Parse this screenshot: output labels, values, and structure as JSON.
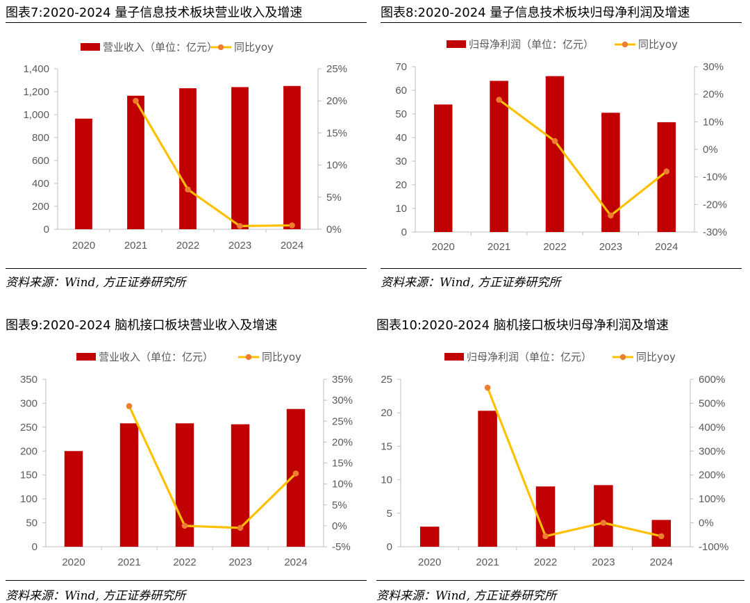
{
  "colors": {
    "bar": "#C00000",
    "line": "#FFC000",
    "marker": "#ED7D31",
    "axis": "#BFBFBF",
    "tick": "#595959"
  },
  "charts": [
    {
      "title": "图表7:2020-2024 量子信息技术板块营业收入及增速",
      "source": "资料来源：Wind, 方正证券研究所",
      "bar_legend": "营业收入（单位：亿元）",
      "line_legend": "同比yoy"
    },
    {
      "title": "图表8:2020-2024 量子信息技术板块归母净利润及增速",
      "source": "资料来源：Wind, 方正证券研究所",
      "bar_legend": "归母净利润（单位：亿元）",
      "line_legend": "同比yoy"
    },
    {
      "title": "图表9:2020-2024 脑机接口板块营业收入及增速",
      "source": "资料来源：Wind, 方正证券研究所",
      "bar_legend": "营业收入（单位：亿元）",
      "line_legend": "同比yoy"
    },
    {
      "title": "图表10:2020-2024 脑机接口板块归母净利润及增速",
      "source": "资料来源：Wind, 方正证券研究所",
      "bar_legend": "归母净利润（单位：亿元）",
      "line_legend": "同比yoy"
    }
  ],
  "chart_data": [
    {
      "type": "bar",
      "categories": [
        "2020",
        "2021",
        "2022",
        "2023",
        "2024"
      ],
      "series": [
        {
          "name": "营业收入（单位：亿元）",
          "type": "bar",
          "axis": "left",
          "values": [
            965,
            1165,
            1230,
            1240,
            1250
          ]
        },
        {
          "name": "同比yoy",
          "type": "line",
          "axis": "right",
          "values": [
            null,
            20.0,
            6.2,
            0.5,
            0.6
          ]
        }
      ],
      "y_left": {
        "min": 0,
        "max": 1400,
        "step": 200,
        "tick_labels": [
          "0",
          "200",
          "400",
          "600",
          "800",
          "1,000",
          "1,200",
          "1,400"
        ]
      },
      "y_right": {
        "min": 0,
        "max": 25,
        "step": 5,
        "tick_labels": [
          "0%",
          "5%",
          "10%",
          "15%",
          "20%",
          "25%"
        ]
      },
      "legend": "top"
    },
    {
      "type": "bar",
      "categories": [
        "2020",
        "2021",
        "2022",
        "2023",
        "2024"
      ],
      "series": [
        {
          "name": "归母净利润（单位：亿元）",
          "type": "bar",
          "axis": "left",
          "values": [
            54,
            64,
            66,
            50.5,
            46.5
          ]
        },
        {
          "name": "同比yoy",
          "type": "line",
          "axis": "right",
          "values": [
            null,
            18,
            3,
            -24,
            -8
          ]
        }
      ],
      "y_left": {
        "min": 0,
        "max": 70,
        "step": 10,
        "tick_labels": [
          "0",
          "10",
          "20",
          "30",
          "40",
          "50",
          "60",
          "70"
        ]
      },
      "y_right": {
        "min": -30,
        "max": 30,
        "step": 10,
        "tick_labels": [
          "-30%",
          "-20%",
          "-10%",
          "0%",
          "10%",
          "20%",
          "30%"
        ]
      },
      "legend": "top"
    },
    {
      "type": "bar",
      "categories": [
        "2020",
        "2021",
        "2022",
        "2023",
        "2024"
      ],
      "series": [
        {
          "name": "营业收入（单位：亿元）",
          "type": "bar",
          "axis": "left",
          "values": [
            200,
            258,
            258,
            256,
            288
          ]
        },
        {
          "name": "同比yoy",
          "type": "line",
          "axis": "right",
          "values": [
            null,
            28.6,
            0,
            -0.5,
            12.5
          ]
        }
      ],
      "y_left": {
        "min": 0,
        "max": 350,
        "step": 50,
        "tick_labels": [
          "0",
          "50",
          "100",
          "150",
          "200",
          "250",
          "300",
          "350"
        ]
      },
      "y_right": {
        "min": -5,
        "max": 35,
        "step": 5,
        "tick_labels": [
          "-5%",
          "0%",
          "5%",
          "10%",
          "15%",
          "20%",
          "25%",
          "30%",
          "35%"
        ]
      },
      "legend": "top"
    },
    {
      "type": "bar",
      "categories": [
        "2020",
        "2021",
        "2022",
        "2023",
        "2024"
      ],
      "series": [
        {
          "name": "归母净利润（单位：亿元）",
          "type": "bar",
          "axis": "left",
          "values": [
            3,
            20.3,
            9,
            9.2,
            4
          ]
        },
        {
          "name": "同比yoy",
          "type": "line",
          "axis": "right",
          "values": [
            null,
            565,
            -56,
            0,
            -56
          ]
        }
      ],
      "y_left": {
        "min": 0,
        "max": 25,
        "step": 5,
        "tick_labels": [
          "0",
          "5",
          "10",
          "15",
          "20",
          "25"
        ]
      },
      "y_right": {
        "min": -100,
        "max": 600,
        "step": 100,
        "tick_labels": [
          "-100%",
          "0%",
          "100%",
          "200%",
          "300%",
          "400%",
          "500%",
          "600%"
        ]
      },
      "legend": "top"
    }
  ]
}
